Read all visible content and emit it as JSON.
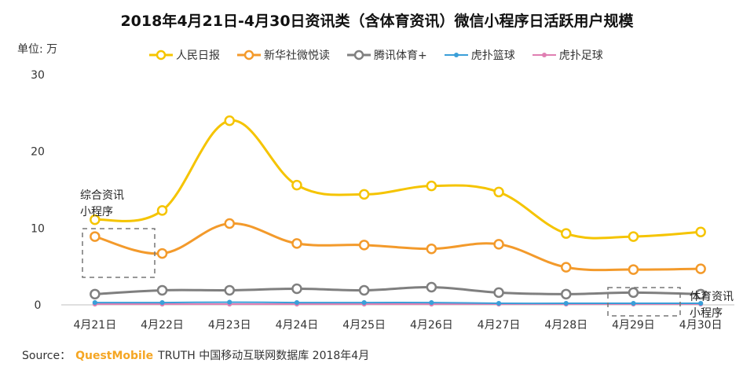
{
  "source": {
    "label": "Source：",
    "brand": "QuestMobile",
    "text": "TRUTH 中国移动互联网数据库 2018年4月"
  },
  "annotations": [
    {
      "text_lines": [
        "综合资讯",
        "小程序"
      ]
    },
    {
      "text_lines": [
        "体育资讯",
        "小程序"
      ]
    }
  ],
  "chart_data": {
    "type": "line",
    "title": "2018年4月21日-4月30日资讯类（含体育资讯）微信小程序日活跃用户规模",
    "ylabel": "单位: 万",
    "xlabel": "",
    "ylim": [
      0,
      30
    ],
    "yticks": [
      0,
      10,
      20,
      30
    ],
    "grid": false,
    "legend_position": "top",
    "categories": [
      "4月21日",
      "4月22日",
      "4月23日",
      "4月24日",
      "4月25日",
      "4月26日",
      "4月27日",
      "4月28日",
      "4月29日",
      "4月30日"
    ],
    "series": [
      {
        "name": "人民日报",
        "color": "#f5c400",
        "values": [
          11.1,
          12.3,
          24.0,
          15.6,
          14.4,
          15.5,
          14.7,
          9.3,
          8.9,
          9.5
        ]
      },
      {
        "name": "新华社微悦读",
        "color": "#f39a2b",
        "values": [
          8.9,
          6.7,
          10.6,
          8.0,
          7.8,
          7.3,
          7.9,
          4.9,
          4.6,
          4.7
        ]
      },
      {
        "name": "腾讯体育+",
        "color": "#7f7f7f",
        "values": [
          1.4,
          1.9,
          1.9,
          2.1,
          1.9,
          2.3,
          1.6,
          1.4,
          1.6,
          1.4
        ]
      },
      {
        "name": "虎扑篮球",
        "color": "#3a9fd8",
        "values": [
          0.3,
          0.3,
          0.35,
          0.3,
          0.3,
          0.3,
          0.2,
          0.2,
          0.2,
          0.2
        ]
      },
      {
        "name": "虎扑足球",
        "color": "#e07fb2",
        "values": [
          0.1,
          0.1,
          0.1,
          0.1,
          0.1,
          0.1,
          0.1,
          0.1,
          0.1,
          0.1
        ]
      }
    ]
  }
}
